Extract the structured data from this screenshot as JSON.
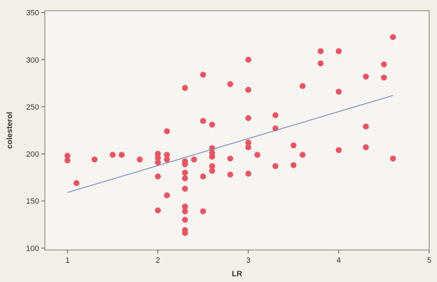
{
  "chart_data": {
    "type": "scatter",
    "title": "",
    "xlabel": "LR",
    "ylabel": "colesterol",
    "xlim": [
      0.75,
      5.0
    ],
    "ylim": [
      98,
      352
    ],
    "xticks": [
      1,
      2,
      3,
      4,
      5
    ],
    "yticks": [
      100,
      150,
      200,
      250,
      300,
      350
    ],
    "grid": false,
    "legend": "none",
    "series": [
      {
        "marker_color": "#ea5362",
        "points": [
          [
            1.0,
            198
          ],
          [
            1.0,
            193
          ],
          [
            1.1,
            169
          ],
          [
            1.3,
            194
          ],
          [
            1.5,
            199
          ],
          [
            1.6,
            199
          ],
          [
            1.8,
            194
          ],
          [
            2.0,
            200
          ],
          [
            2.0,
            196
          ],
          [
            2.0,
            191
          ],
          [
            2.0,
            176
          ],
          [
            2.0,
            140
          ],
          [
            2.1,
            224
          ],
          [
            2.1,
            199
          ],
          [
            2.1,
            194
          ],
          [
            2.1,
            156
          ],
          [
            2.3,
            270
          ],
          [
            2.3,
            192
          ],
          [
            2.3,
            189
          ],
          [
            2.3,
            180
          ],
          [
            2.3,
            174
          ],
          [
            2.3,
            163
          ],
          [
            2.3,
            144
          ],
          [
            2.3,
            139
          ],
          [
            2.3,
            130
          ],
          [
            2.3,
            119
          ],
          [
            2.3,
            116
          ],
          [
            2.4,
            194
          ],
          [
            2.5,
            284
          ],
          [
            2.5,
            235
          ],
          [
            2.5,
            176
          ],
          [
            2.5,
            139
          ],
          [
            2.6,
            231
          ],
          [
            2.6,
            206
          ],
          [
            2.6,
            201
          ],
          [
            2.6,
            197
          ],
          [
            2.6,
            187
          ],
          [
            2.6,
            182
          ],
          [
            2.8,
            274
          ],
          [
            2.8,
            195
          ],
          [
            2.8,
            178
          ],
          [
            3.0,
            300
          ],
          [
            3.0,
            268
          ],
          [
            3.0,
            238
          ],
          [
            3.0,
            212
          ],
          [
            3.0,
            207
          ],
          [
            3.0,
            179
          ],
          [
            3.1,
            199
          ],
          [
            3.3,
            241
          ],
          [
            3.3,
            227
          ],
          [
            3.3,
            187
          ],
          [
            3.5,
            209
          ],
          [
            3.5,
            188
          ],
          [
            3.6,
            272
          ],
          [
            3.6,
            199
          ],
          [
            3.8,
            309
          ],
          [
            3.8,
            296
          ],
          [
            4.0,
            309
          ],
          [
            4.0,
            266
          ],
          [
            4.0,
            204
          ],
          [
            4.3,
            282
          ],
          [
            4.3,
            229
          ],
          [
            4.3,
            207
          ],
          [
            4.5,
            295
          ],
          [
            4.5,
            281
          ],
          [
            4.6,
            324
          ],
          [
            4.6,
            195
          ]
        ]
      }
    ],
    "regression_line": {
      "color": "#7889b8",
      "x": [
        1.0,
        4.6
      ],
      "y": [
        159,
        262
      ]
    }
  }
}
